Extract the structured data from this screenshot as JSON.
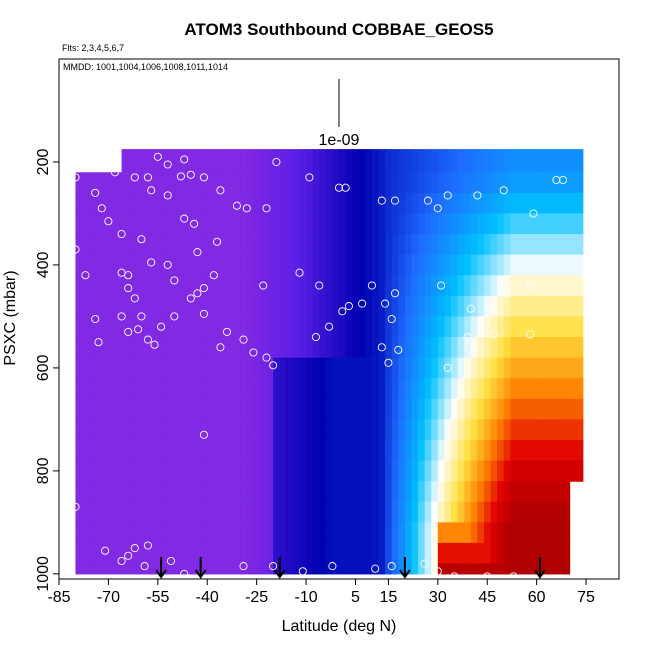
{
  "chart_data": {
    "type": "heatmap",
    "title": "ATOM3 Southbound COBBAE_GEOS5",
    "annotations": {
      "flights": "Flts: 2,3,4,5,6,7",
      "dates": "MMDD: 1001,1004,1006,1008,1011,1014",
      "scale_label": "1e-09"
    },
    "xlabel": "Latitude (deg N)",
    "ylabel": "PSXC (mbar)",
    "xlim": [
      -85,
      85
    ],
    "ylim": [
      1010,
      0
    ],
    "y_reversed": true,
    "x_ticks": [
      "-85",
      "-70",
      "-55",
      "-40",
      "-25",
      "-10",
      "5",
      "15",
      "30",
      "45",
      "60",
      "75"
    ],
    "x_tick_values": [
      -85,
      -70,
      -55,
      -40,
      -25,
      -10,
      5,
      15,
      30,
      45,
      60,
      75
    ],
    "y_ticks": [
      "200",
      "400",
      "600",
      "800",
      "1000"
    ],
    "y_tick_values": [
      200,
      400,
      600,
      800,
      1000
    ],
    "grid": false,
    "colormap": [
      "#8a2be2",
      "#5a1ee6",
      "#0000b0",
      "#1e6cff",
      "#00c0ff",
      "#ffffff",
      "#ffe040",
      "#ff8000",
      "#e00000",
      "#b00000"
    ],
    "regions": [
      {
        "lat": [
          -66,
          73
        ],
        "p": [
          175,
          220
        ],
        "palette": "upper"
      },
      {
        "lat": [
          -80,
          73
        ],
        "p": [
          220,
          1000
        ],
        "palette": "lower"
      }
    ],
    "sample_points": [
      [
        -55,
        190
      ],
      [
        -52,
        205
      ],
      [
        -58,
        230
      ],
      [
        -48,
        228
      ],
      [
        -80,
        230
      ],
      [
        -62,
        230
      ],
      [
        -57,
        255
      ],
      [
        -52,
        265
      ],
      [
        -47,
        195
      ],
      [
        -45,
        225
      ],
      [
        -41,
        230
      ],
      [
        -36,
        255
      ],
      [
        -31,
        285
      ],
      [
        -28,
        290
      ],
      [
        -22,
        290
      ],
      [
        -19,
        200
      ],
      [
        -9,
        230
      ],
      [
        0,
        250
      ],
      [
        2,
        250
      ],
      [
        13,
        275
      ],
      [
        17,
        275
      ],
      [
        27,
        275
      ],
      [
        30,
        290
      ],
      [
        33,
        265
      ],
      [
        42,
        265
      ],
      [
        50,
        255
      ],
      [
        59,
        300
      ],
      [
        66,
        235
      ],
      [
        68,
        235
      ],
      [
        -68,
        220
      ],
      [
        -74,
        260
      ],
      [
        -72,
        290
      ],
      [
        -70,
        315
      ],
      [
        -80,
        370
      ],
      [
        -66,
        340
      ],
      [
        -60,
        350
      ],
      [
        -57,
        395
      ],
      [
        -52,
        400
      ],
      [
        -50,
        430
      ],
      [
        -47,
        310
      ],
      [
        -44,
        320
      ],
      [
        -43,
        375
      ],
      [
        -37,
        355
      ],
      [
        -38,
        420
      ],
      [
        -41,
        445
      ],
      [
        -23,
        440
      ],
      [
        -12,
        415
      ],
      [
        -6,
        440
      ],
      [
        -3,
        520
      ],
      [
        1,
        490
      ],
      [
        3,
        480
      ],
      [
        7,
        475
      ],
      [
        10,
        440
      ],
      [
        14,
        475
      ],
      [
        17,
        455
      ],
      [
        16,
        505
      ],
      [
        13,
        560
      ],
      [
        18,
        565
      ],
      [
        31,
        440
      ],
      [
        40,
        485
      ],
      [
        46,
        485
      ],
      [
        51,
        455
      ],
      [
        58,
        440
      ],
      [
        39,
        540
      ],
      [
        47,
        535
      ],
      [
        58,
        535
      ],
      [
        -77,
        420
      ],
      [
        -74,
        505
      ],
      [
        -73,
        550
      ],
      [
        -66,
        415
      ],
      [
        -64,
        420
      ],
      [
        -64,
        445
      ],
      [
        -62,
        465
      ],
      [
        -66,
        500
      ],
      [
        -64,
        530
      ],
      [
        -61,
        525
      ],
      [
        -60,
        500
      ],
      [
        -58,
        545
      ],
      [
        -56,
        555
      ],
      [
        -54,
        520
      ],
      [
        -50,
        500
      ],
      [
        -45,
        465
      ],
      [
        -43,
        455
      ],
      [
        -41,
        495
      ],
      [
        -36,
        560
      ],
      [
        -29,
        545
      ],
      [
        -26,
        570
      ],
      [
        -22,
        580
      ],
      [
        -20,
        595
      ],
      [
        -34,
        530
      ],
      [
        -7,
        540
      ],
      [
        15,
        590
      ],
      [
        33,
        600
      ],
      [
        -41,
        730
      ],
      [
        -80,
        870
      ],
      [
        -62,
        950
      ],
      [
        -58,
        945
      ],
      [
        -64,
        965
      ],
      [
        -71,
        955
      ],
      [
        -66,
        975
      ],
      [
        -59,
        985
      ],
      [
        -51,
        975
      ],
      [
        -47,
        1000
      ],
      [
        -42,
        1005
      ],
      [
        -29,
        985
      ],
      [
        -20,
        985
      ],
      [
        -11,
        995
      ],
      [
        -2,
        985
      ],
      [
        11,
        990
      ],
      [
        16,
        985
      ],
      [
        26,
        980
      ],
      [
        30,
        995
      ],
      [
        35,
        1005
      ],
      [
        45,
        1005
      ],
      [
        53,
        1005
      ]
    ],
    "flight_arrows": [
      -54,
      -42,
      -18,
      20,
      61
    ]
  }
}
